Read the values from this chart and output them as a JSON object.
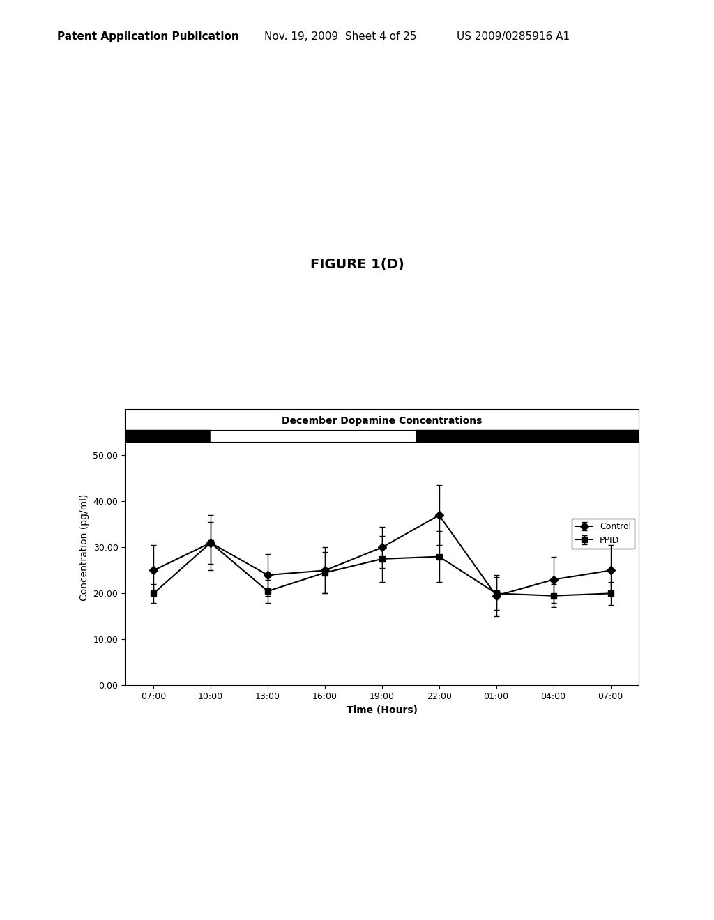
{
  "title": "December Dopamine Concentrations",
  "figure_title": "FIGURE 1(D)",
  "xlabel": "Time (Hours)",
  "ylabel": "Concentration (pg/ml)",
  "xtick_labels": [
    "07:00",
    "10:00",
    "13:00",
    "16:00",
    "19:00",
    "22:00",
    "01:00",
    "04:00",
    "07:00"
  ],
  "ytick_labels": [
    "0.00",
    "10.00",
    "20.00",
    "30.00",
    "40.00",
    "50.00"
  ],
  "ytick_values": [
    0,
    10,
    20,
    30,
    40,
    50
  ],
  "ylim": [
    0,
    55
  ],
  "control_values": [
    25.0,
    31.0,
    24.0,
    25.0,
    30.0,
    37.0,
    19.5,
    23.0,
    25.0
  ],
  "ppid_values": [
    20.0,
    31.0,
    20.5,
    24.5,
    27.5,
    28.0,
    20.0,
    19.5,
    20.0
  ],
  "control_errors": [
    5.5,
    6.0,
    4.5,
    5.0,
    4.5,
    6.5,
    4.5,
    5.0,
    5.5
  ],
  "ppid_errors": [
    2.0,
    4.5,
    2.5,
    4.5,
    5.0,
    5.5,
    3.5,
    2.5,
    2.5
  ],
  "background_color": "#ffffff",
  "legend_control": "Control",
  "legend_ppid": "PPID",
  "header_text_left": "Patent Application Publication",
  "header_text_mid": "Nov. 19, 2009  Sheet 4 of 25",
  "header_text_right": "US 2009/0285916 A1"
}
